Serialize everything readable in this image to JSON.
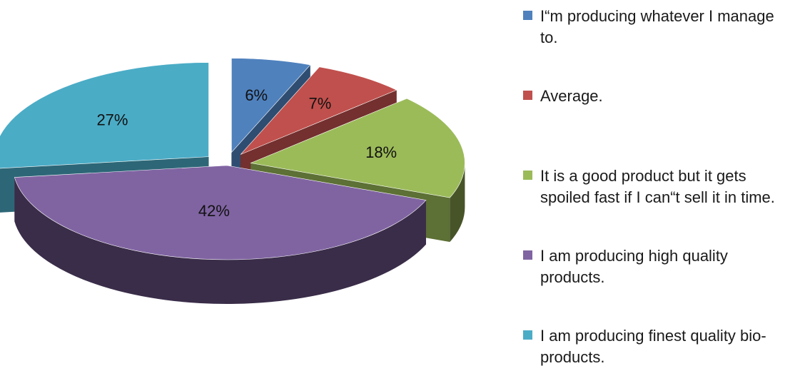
{
  "chart_data": {
    "type": "pie",
    "style": "3d exploded",
    "legend_position": "right",
    "slices": [
      {
        "label": "I“m producing whatever I manage to.",
        "value": 6,
        "data_label": "6%",
        "color": "#4f81bd"
      },
      {
        "label": "Average.",
        "value": 7,
        "data_label": "7%",
        "color": "#c0504d"
      },
      {
        "label": "It is a good product but it gets spoiled fast if I can“t sell it in time.",
        "value": 18,
        "data_label": "18%",
        "color": "#9bbb59"
      },
      {
        "label": "I am producing high quality products.",
        "value": 42,
        "data_label": "42%",
        "color": "#8064a2"
      },
      {
        "label": "I am producing finest quality bio-products.",
        "value": 27,
        "data_label": "27%",
        "color": "#4bacc6"
      }
    ]
  }
}
